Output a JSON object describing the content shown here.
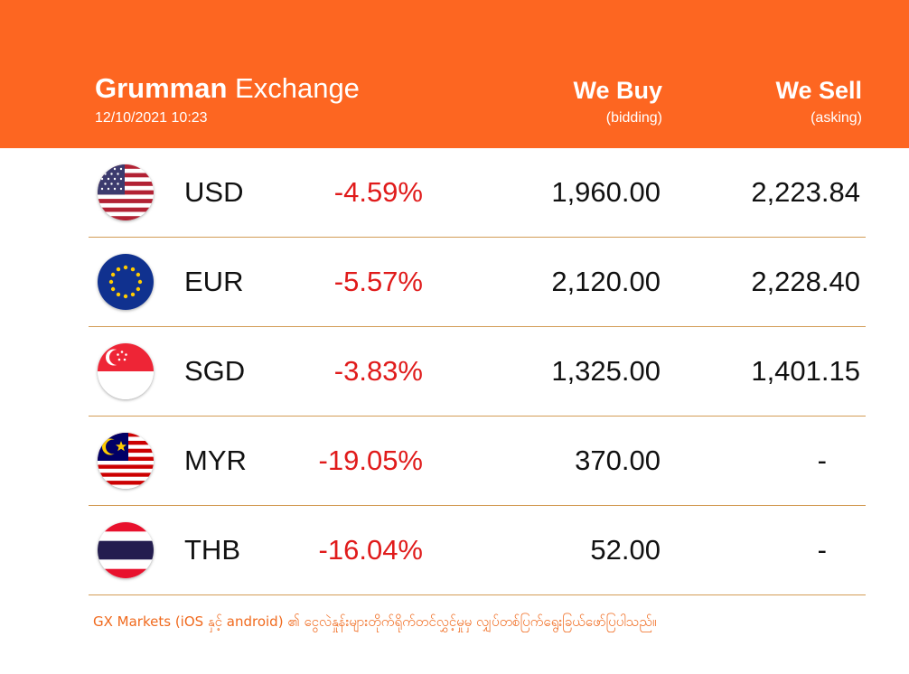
{
  "header": {
    "brand_bold": "Grumman",
    "brand_light": "Exchange",
    "timestamp": "12/10/2021 10:23",
    "buy_title": "We Buy",
    "buy_sub": "(bidding)",
    "sell_title": "We Sell",
    "sell_sub": "(asking)"
  },
  "rates": [
    {
      "code": "USD",
      "change": "-4.59%",
      "buy": "1,960.00",
      "sell": "2,223.84",
      "flag": "us-flag-icon"
    },
    {
      "code": "EUR",
      "change": "-5.57%",
      "buy": "2,120.00",
      "sell": "2,228.40",
      "flag": "eu-flag-icon"
    },
    {
      "code": "SGD",
      "change": "-3.83%",
      "buy": "1,325.00",
      "sell": "1,401.15",
      "flag": "sg-flag-icon"
    },
    {
      "code": "MYR",
      "change": "-19.05%",
      "buy": "370.00",
      "sell": "-",
      "flag": "my-flag-icon"
    },
    {
      "code": "THB",
      "change": "-16.04%",
      "buy": "52.00",
      "sell": "-",
      "flag": "th-flag-icon"
    }
  ],
  "footer": {
    "text": "GX Markets (iOS နှင့် android) ၏ ငွေလဲနှုန်းများတိုက်ရိုက်တင်လွှင့်မှုမှ လျှပ်တစ်ပြက်ရွေးခြယ်ဖော်ပြပါသည်။"
  },
  "colors": {
    "header_bg": "#fd6621",
    "negative": "#e01b1b",
    "divider": "#d39c56",
    "footer_text": "#f06a1e"
  }
}
